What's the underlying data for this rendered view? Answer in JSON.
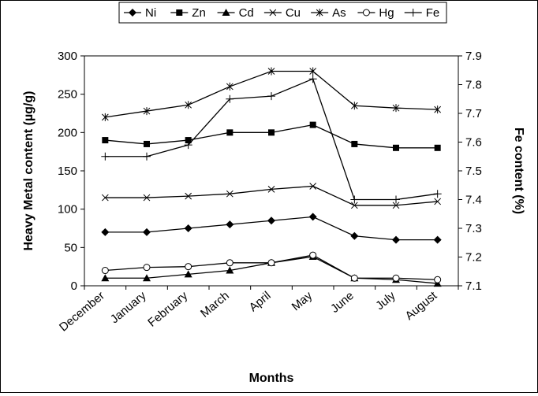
{
  "chart_data": {
    "type": "line",
    "xlabel": "Months",
    "ylabel_left": "Heavy Metal content (µg/g)",
    "ylabel_right": "Fe content   (%)",
    "categories": [
      "December",
      "January",
      "February",
      "March",
      "April",
      "May",
      "June",
      "July",
      "August"
    ],
    "y_left": {
      "lim": [
        0,
        300
      ],
      "ticks": [
        "0",
        "50",
        "100",
        "150",
        "200",
        "250",
        "300"
      ]
    },
    "y_right": {
      "lim": [
        7.1,
        7.9
      ],
      "ticks": [
        "7.1",
        "7.2",
        "7.3",
        "7.4",
        "7.5",
        "7.6",
        "7.7",
        "7.8",
        "7.9"
      ]
    },
    "legend_position": "top",
    "series": [
      {
        "name": "Ni",
        "marker": "diamond-filled",
        "axis": "left",
        "values": [
          70,
          70,
          75,
          80,
          85,
          90,
          65,
          60,
          60
        ]
      },
      {
        "name": "Zn",
        "marker": "square-filled",
        "axis": "left",
        "values": [
          190,
          185,
          190,
          200,
          200,
          210,
          185,
          180,
          180
        ]
      },
      {
        "name": "Cd",
        "marker": "triangle-filled",
        "axis": "left",
        "values": [
          10,
          10,
          15,
          20,
          30,
          38,
          10,
          8,
          3
        ]
      },
      {
        "name": "Cu",
        "marker": "x",
        "axis": "left",
        "values": [
          115,
          115,
          117,
          120,
          126,
          130,
          105,
          105,
          110
        ]
      },
      {
        "name": "As",
        "marker": "asterisk",
        "axis": "left",
        "values": [
          220,
          228,
          236,
          260,
          280,
          280,
          235,
          232,
          230
        ]
      },
      {
        "name": "Hg",
        "marker": "circle-open",
        "axis": "left",
        "values": [
          20,
          24,
          25,
          30,
          30,
          40,
          10,
          10,
          8
        ]
      },
      {
        "name": "Fe",
        "marker": "plus",
        "axis": "right",
        "values": [
          7.55,
          7.55,
          7.59,
          7.75,
          7.76,
          7.82,
          7.4,
          7.4,
          7.42
        ]
      }
    ]
  }
}
